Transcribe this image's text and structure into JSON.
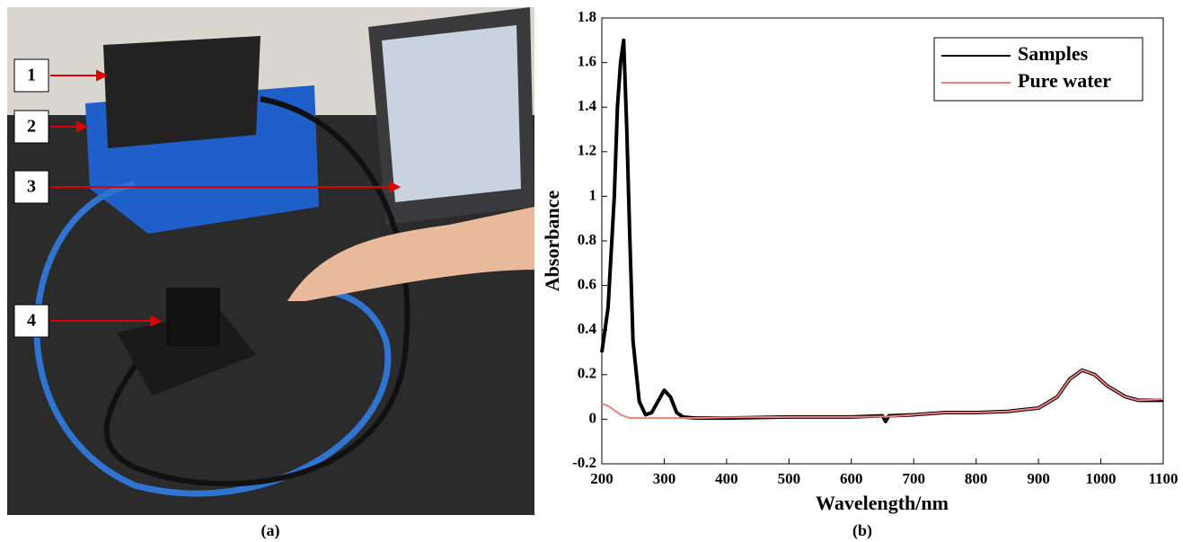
{
  "panels": {
    "a": {
      "labels": [
        "1",
        "2",
        "3",
        "4"
      ],
      "caption": "(a)"
    }
  },
  "chart_data": {
    "type": "line",
    "caption": "(b)",
    "xlabel": "Wavelength/nm",
    "ylabel": "Absorbance",
    "x": [
      200,
      210,
      220,
      225,
      230,
      235,
      240,
      245,
      250,
      260,
      270,
      280,
      290,
      300,
      310,
      320,
      330,
      350,
      400,
      500,
      600,
      650,
      655,
      660,
      700,
      750,
      800,
      850,
      900,
      930,
      950,
      970,
      990,
      1010,
      1040,
      1060,
      1100
    ],
    "series": [
      {
        "name": "Samples",
        "color": "#000000",
        "values": [
          0.3,
          0.5,
          1.0,
          1.4,
          1.6,
          1.7,
          1.3,
          0.8,
          0.35,
          0.08,
          0.02,
          0.03,
          0.08,
          0.13,
          0.1,
          0.03,
          0.01,
          0.005,
          0.005,
          0.01,
          0.01,
          0.015,
          -0.01,
          0.015,
          0.02,
          0.03,
          0.03,
          0.035,
          0.05,
          0.1,
          0.18,
          0.22,
          0.2,
          0.15,
          0.1,
          0.085,
          0.085
        ]
      },
      {
        "name": "Pure water",
        "color": "#f08080",
        "values": [
          0.07,
          0.06,
          0.04,
          0.03,
          0.02,
          0.015,
          0.01,
          0.005,
          0.005,
          0.005,
          0.005,
          0.005,
          0.005,
          0.005,
          0.005,
          0.005,
          0.005,
          0.005,
          0.008,
          0.01,
          0.01,
          0.012,
          0.01,
          0.012,
          0.02,
          0.03,
          0.03,
          0.035,
          0.05,
          0.1,
          0.18,
          0.22,
          0.2,
          0.15,
          0.1,
          0.085,
          0.09
        ]
      }
    ],
    "xlim": [
      200,
      1100
    ],
    "xticks": [
      200,
      300,
      400,
      500,
      600,
      700,
      800,
      900,
      1000,
      1100
    ],
    "ylim": [
      -0.2,
      1.8
    ],
    "yticks": [
      -0.2,
      0,
      0.2,
      0.4,
      0.6,
      0.8,
      1,
      1.2,
      1.4,
      1.6,
      1.8
    ],
    "legend": "upper right"
  }
}
